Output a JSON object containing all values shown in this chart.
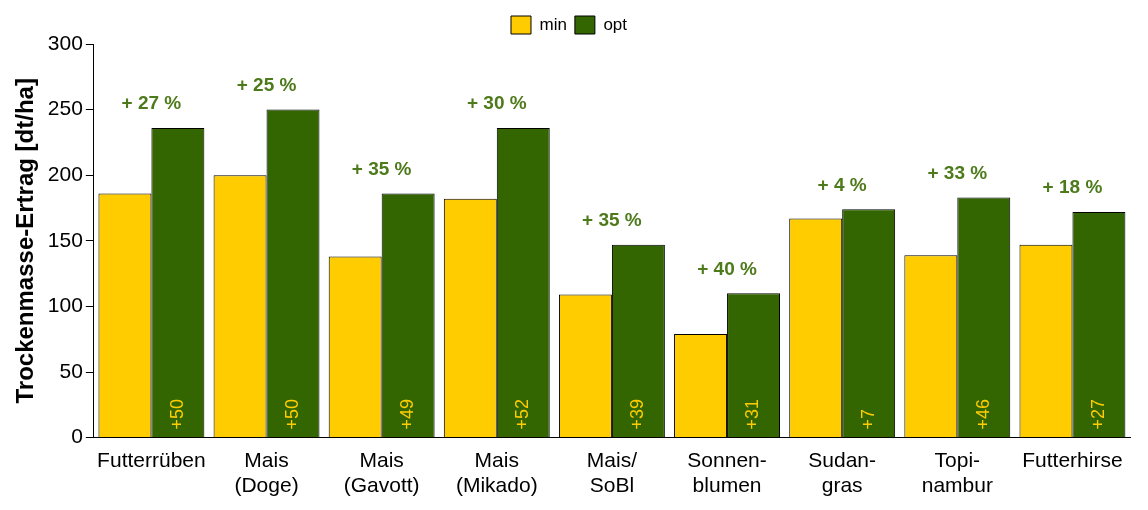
{
  "chart_data": {
    "type": "bar",
    "ylabel": "Trockenmasse-Ertrag [dt/ha]",
    "categories": [
      "Futterrüben",
      "Mais (Doge)",
      "Mais (Gavott)",
      "Mais (Mikado)",
      "Mais/ SoBl",
      "Sonnen- blumen",
      "Sudan- gras",
      "Topi- nambur",
      "Futterhirse"
    ],
    "series": [
      {
        "name": "min",
        "color": "#ffcc00",
        "values": [
          186,
          200,
          138,
          182,
          109,
          79,
          167,
          139,
          147
        ]
      },
      {
        "name": "opt",
        "color": "#336600",
        "values": [
          236,
          250,
          186,
          236,
          147,
          110,
          174,
          183,
          172
        ]
      }
    ],
    "ylim": [
      0,
      300
    ],
    "yticks": [
      0,
      50,
      100,
      150,
      200,
      250,
      300
    ],
    "grid": false,
    "legend": "top",
    "annotations": [
      {
        "text": "+ 27 %",
        "x": "Futterrüben",
        "y": 236
      },
      {
        "text": "+ 25 %",
        "x": "Mais (Doge)",
        "y": 250
      },
      {
        "text": "+ 35 %",
        "x": "Mais (Gavott)",
        "y": 186
      },
      {
        "text": "+ 30 %",
        "x": "Mais (Mikado)",
        "y": 236
      },
      {
        "text": "+ 35 %",
        "x": "Mais/ SoBl",
        "y": 147
      },
      {
        "text": "+ 40 %",
        "x": "Sonnen- blumen",
        "y": 110
      },
      {
        "text": "+ 4 %",
        "x": "Sudan- gras",
        "y": 174
      },
      {
        "text": "+ 33 %",
        "x": "Topi- nambur",
        "y": 183
      },
      {
        "text": "+ 18 %",
        "x": "Futterhirse",
        "y": 172
      },
      "+50",
      "+50",
      "+49",
      "+52",
      "+39",
      "+31",
      "+7",
      "+46",
      "+27"
    ]
  }
}
